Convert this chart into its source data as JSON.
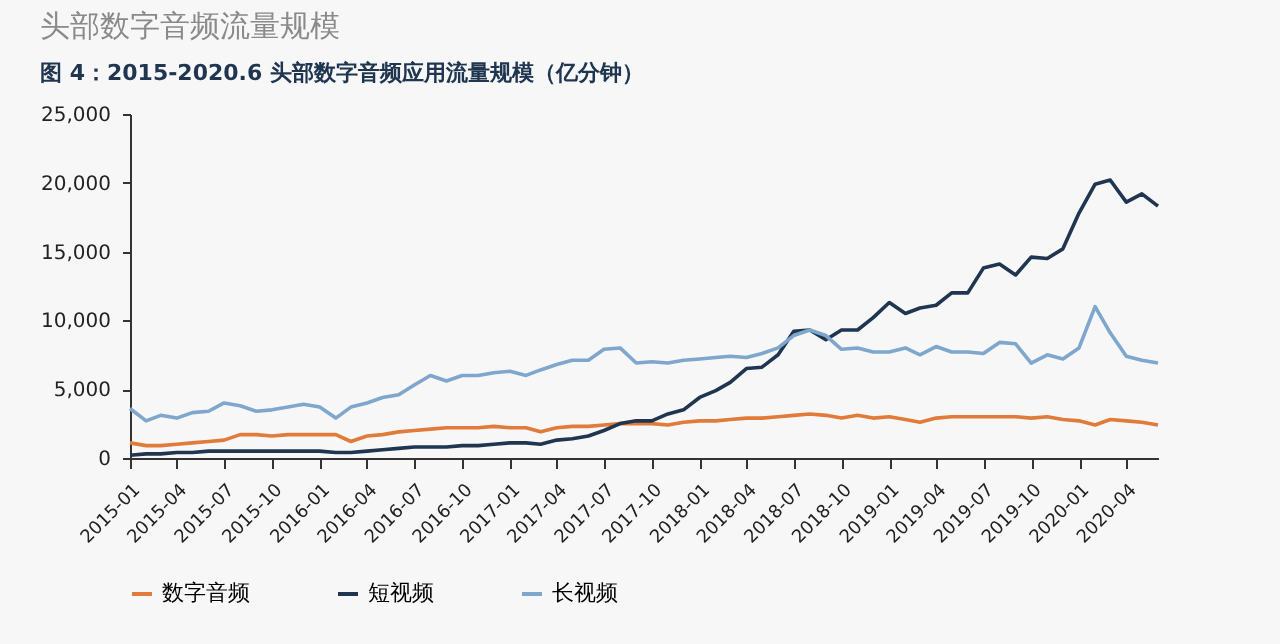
{
  "chart_data": {
    "type": "line",
    "title": "头部数字音频流量规模",
    "subtitle": "图 4：2015-2020.6 头部数字音频应用流量规模（亿分钟）",
    "x": [
      "2015-01",
      "2015-02",
      "2015-03",
      "2015-04",
      "2015-05",
      "2015-06",
      "2015-07",
      "2015-08",
      "2015-09",
      "2015-10",
      "2015-11",
      "2015-12",
      "2016-01",
      "2016-02",
      "2016-03",
      "2016-04",
      "2016-05",
      "2016-06",
      "2016-07",
      "2016-08",
      "2016-09",
      "2016-10",
      "2016-11",
      "2016-12",
      "2017-01",
      "2017-02",
      "2017-03",
      "2017-04",
      "2017-05",
      "2017-06",
      "2017-07",
      "2017-08",
      "2017-09",
      "2017-10",
      "2017-11",
      "2017-12",
      "2018-01",
      "2018-02",
      "2018-03",
      "2018-04",
      "2018-05",
      "2018-06",
      "2018-07",
      "2018-08",
      "2018-09",
      "2018-10",
      "2018-11",
      "2018-12",
      "2019-01",
      "2019-02",
      "2019-03",
      "2019-04",
      "2019-05",
      "2019-06",
      "2019-07",
      "2019-08",
      "2019-09",
      "2019-10",
      "2019-11",
      "2019-12",
      "2020-01",
      "2020-02",
      "2020-03",
      "2020-04",
      "2020-05",
      "2020-06"
    ],
    "series": [
      {
        "name": "数字音频",
        "color": "#e07b39",
        "values": [
          1100,
          900,
          900,
          1000,
          1100,
          1200,
          1300,
          1700,
          1700,
          1600,
          1700,
          1700,
          1700,
          1700,
          1200,
          1600,
          1700,
          1900,
          2000,
          2100,
          2200,
          2200,
          2200,
          2300,
          2200,
          2200,
          1900,
          2200,
          2300,
          2300,
          2400,
          2500,
          2500,
          2500,
          2400,
          2600,
          2700,
          2700,
          2800,
          2900,
          2900,
          3000,
          3100,
          3200,
          3100,
          2900,
          3100,
          2900,
          3000,
          2800,
          2600,
          2900,
          3000,
          3000,
          3000,
          3000,
          3000,
          2900,
          3000,
          2800,
          2700,
          2400,
          2800,
          2700,
          2600,
          2400
        ]
      },
      {
        "name": "短视频",
        "color": "#1f3550",
        "values": [
          200,
          300,
          300,
          400,
          400,
          500,
          500,
          500,
          500,
          500,
          500,
          500,
          500,
          400,
          400,
          500,
          600,
          700,
          800,
          800,
          800,
          900,
          900,
          1000,
          1100,
          1100,
          1000,
          1300,
          1400,
          1600,
          2000,
          2500,
          2700,
          2700,
          3200,
          3500,
          4400,
          4900,
          5500,
          6500,
          6600,
          7500,
          9200,
          9300,
          8600,
          9300,
          9300,
          10200,
          11300,
          10500,
          10900,
          11100,
          12000,
          12000,
          13800,
          14100,
          13300,
          14600,
          14500,
          15200,
          17800,
          19900,
          20200,
          18600,
          19200,
          18300
        ]
      },
      {
        "name": "长视频",
        "color": "#7fa6cc",
        "values": [
          3600,
          2700,
          3100,
          2900,
          3300,
          3400,
          4000,
          3800,
          3400,
          3500,
          3700,
          3900,
          3700,
          2900,
          3700,
          4000,
          4400,
          4600,
          5300,
          6000,
          5600,
          6000,
          6000,
          6200,
          6300,
          6000,
          6400,
          6800,
          7100,
          7100,
          7900,
          8000,
          6900,
          7000,
          6900,
          7100,
          7200,
          7300,
          7400,
          7300,
          7600,
          8000,
          8900,
          9300,
          8900,
          7900,
          8000,
          7700,
          7700,
          8000,
          7500,
          8100,
          7700,
          7700,
          7600,
          8400,
          8300,
          6900,
          7500,
          7200,
          8000,
          11000,
          9100,
          7400,
          7100,
          6900
        ]
      }
    ],
    "xlim": [
      "2015-01",
      "2020-06"
    ],
    "xticks": [
      "2015-01",
      "2015-04",
      "2015-07",
      "2015-10",
      "2016-01",
      "2016-04",
      "2016-07",
      "2016-10",
      "2017-01",
      "2017-04",
      "2017-07",
      "2017-10",
      "2018-01",
      "2018-04",
      "2018-07",
      "2018-10",
      "2019-01",
      "2019-04",
      "2019-07",
      "2019-10",
      "2020-01",
      "2020-04"
    ],
    "ylim": [
      0,
      25000
    ],
    "yticks": [
      0,
      {
        "value": 5000,
        "label": "5,000"
      },
      {
        "value": 10000,
        "label": "10,000"
      },
      {
        "value": 15000,
        "label": "15,000"
      },
      {
        "value": 20000,
        "label": "20,000"
      },
      {
        "value": 25000,
        "label": "25,000"
      }
    ],
    "grid": false,
    "legend": "bottom",
    "marker": "none",
    "line_style": "solid"
  }
}
